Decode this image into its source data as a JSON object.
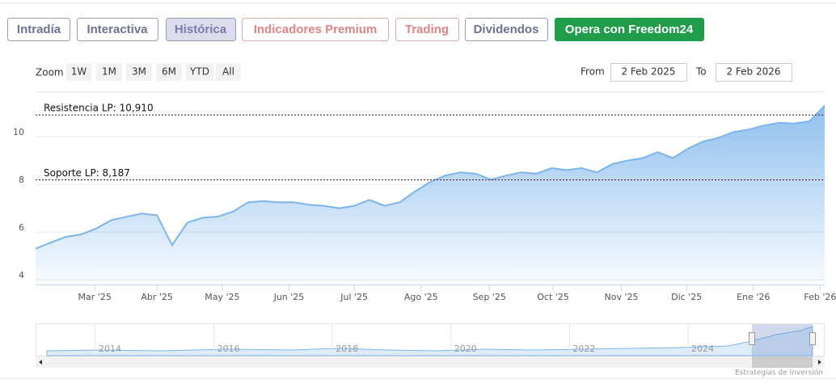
{
  "tabs": [
    "Intradía",
    "Interactiva",
    "Histórica",
    "Indicadores Premium",
    "Trading",
    "Dividendos",
    "Opera con Freedom24"
  ],
  "zoom": {
    "label": "Zoom",
    "buttons": [
      "1W",
      "1M",
      "3M",
      "6M",
      "YTD",
      "All"
    ]
  },
  "range": {
    "from_label": "From",
    "from": "2 Feb 2025",
    "to_label": "To",
    "to": "2 Feb 2026"
  },
  "chart_data": {
    "type": "area",
    "x": [
      0,
      1,
      2,
      3,
      4,
      5,
      6,
      7,
      8,
      9,
      10,
      11,
      12,
      13,
      14,
      15,
      16,
      17,
      18,
      19,
      20,
      21,
      22,
      23,
      24,
      25,
      26,
      27,
      28,
      29,
      30,
      31,
      32,
      33,
      34,
      35,
      36,
      37,
      38,
      39,
      40,
      41,
      42,
      43,
      44,
      45,
      46,
      47,
      48,
      49,
      50,
      51,
      52
    ],
    "values": [
      5.3,
      5.56,
      5.8,
      5.9,
      6.15,
      6.5,
      6.64,
      6.78,
      6.7,
      5.45,
      6.4,
      6.6,
      6.65,
      6.85,
      7.25,
      7.3,
      7.25,
      7.25,
      7.15,
      7.1,
      7.0,
      7.1,
      7.35,
      7.1,
      7.25,
      7.7,
      8.1,
      8.37,
      8.5,
      8.45,
      8.2,
      8.37,
      8.5,
      8.45,
      8.68,
      8.6,
      8.68,
      8.5,
      8.85,
      9.0,
      9.1,
      9.35,
      9.1,
      9.5,
      9.8,
      9.95,
      10.2,
      10.3,
      10.47,
      10.58,
      10.55,
      10.65,
      11.3
    ],
    "color": "#7cb5ec",
    "xlim": [
      0,
      52
    ],
    "ylim": [
      3.8,
      11.9
    ],
    "yticks": [
      4,
      6,
      8,
      10
    ],
    "xticks": [
      {
        "value": 3.9,
        "label": "Mar '25"
      },
      {
        "value": 8.0,
        "label": "Abr '25"
      },
      {
        "value": 12.3,
        "label": "May '25"
      },
      {
        "value": 16.7,
        "label": "Jun '25"
      },
      {
        "value": 21.0,
        "label": "Jul '25"
      },
      {
        "value": 25.4,
        "label": "Ago '25"
      },
      {
        "value": 29.9,
        "label": "Sep '25"
      },
      {
        "value": 34.1,
        "label": "Oct '25"
      },
      {
        "value": 38.6,
        "label": "Nov '25"
      },
      {
        "value": 42.9,
        "label": "Dic '25"
      },
      {
        "value": 47.3,
        "label": "Ene '26"
      },
      {
        "value": 51.7,
        "label": "Feb '26"
      }
    ],
    "grid": true,
    "plot_lines": [
      {
        "value": 10.91,
        "label": "Resistencia LP: 10,910"
      },
      {
        "value": 8.187,
        "label": "Soporte LP: 8,187"
      }
    ]
  },
  "navigator": {
    "labels": [
      "2014",
      "2016",
      "2018",
      "2020",
      "2022",
      "2024"
    ]
  },
  "credits": "Estrategias de Inversión"
}
